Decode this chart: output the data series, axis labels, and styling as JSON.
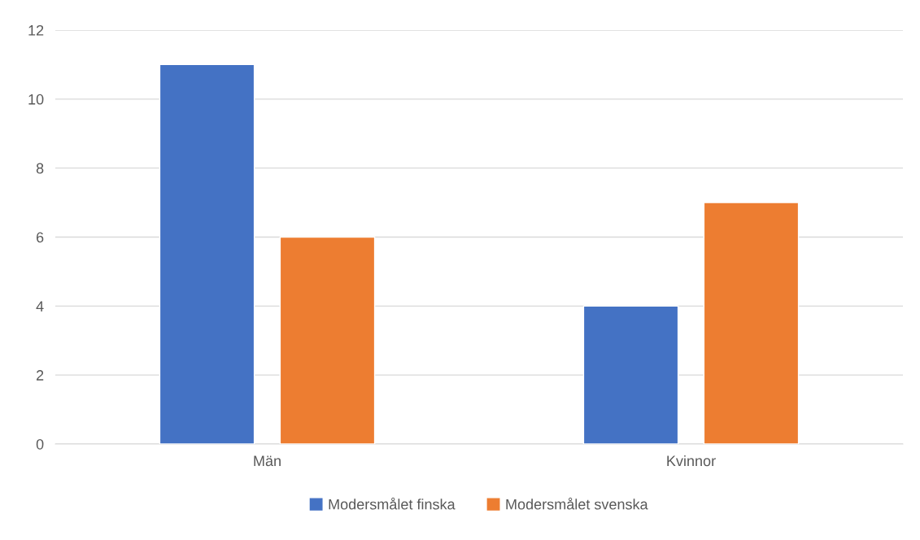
{
  "chart_data": {
    "type": "bar",
    "categories": [
      "Män",
      "Kvinnor"
    ],
    "series": [
      {
        "name": "Modersmålet finska",
        "color": "#4472c4",
        "values": [
          11,
          4
        ]
      },
      {
        "name": "Modersmålet svenska",
        "color": "#ed7d31",
        "values": [
          6,
          7
        ]
      }
    ],
    "ylim": [
      0,
      12
    ],
    "yticks": [
      0,
      2,
      4,
      6,
      8,
      10,
      12
    ],
    "grid": "y",
    "legend": "bottom"
  }
}
